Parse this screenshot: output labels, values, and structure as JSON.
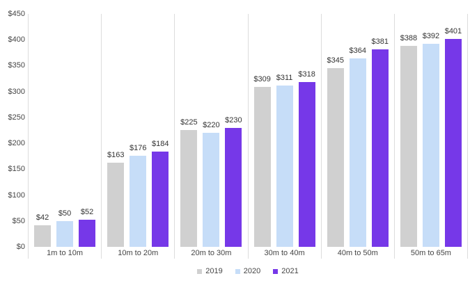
{
  "chart_data": {
    "type": "bar",
    "title": "",
    "categories": [
      "1m to 10m",
      "10m to 20m",
      "20m to 30m",
      "30m to 40m",
      "40m to 50m",
      "50m to 65m"
    ],
    "series": [
      {
        "name": "2019",
        "color": "#d0d0d0",
        "values": [
          42,
          163,
          225,
          309,
          345,
          388
        ]
      },
      {
        "name": "2020",
        "color": "#c6ddf8",
        "values": [
          50,
          176,
          220,
          311,
          364,
          392
        ]
      },
      {
        "name": "2021",
        "color": "#7638e8",
        "values": [
          52,
          184,
          230,
          318,
          381,
          401
        ]
      }
    ],
    "value_prefix": "$",
    "ylim": [
      0,
      450
    ],
    "ytick_step": 50,
    "ytick_labels": [
      "$0",
      "$50",
      "$100",
      "$150",
      "$200",
      "$250",
      "$300",
      "$350",
      "$400",
      "$450"
    ],
    "data_labels": [
      "$42",
      "$50",
      "$52",
      "$163",
      "$176",
      "$184",
      "$225",
      "$220",
      "$230",
      "$309",
      "$311",
      "$318",
      "$345",
      "$364",
      "$381",
      "$388",
      "$392",
      "$401"
    ],
    "grid": "vertical-category-separators",
    "legend_position": "bottom",
    "legend_labels": [
      "2019",
      "2020",
      "2021"
    ]
  },
  "colors": {
    "background": "#ffffff",
    "separator_line": "#dcdcdc",
    "axis_text": "#454545",
    "bar_label_text": "#333333",
    "series_2019": "#d0d0d0",
    "series_2020": "#c6ddf8",
    "series_2021": "#7638e8"
  }
}
